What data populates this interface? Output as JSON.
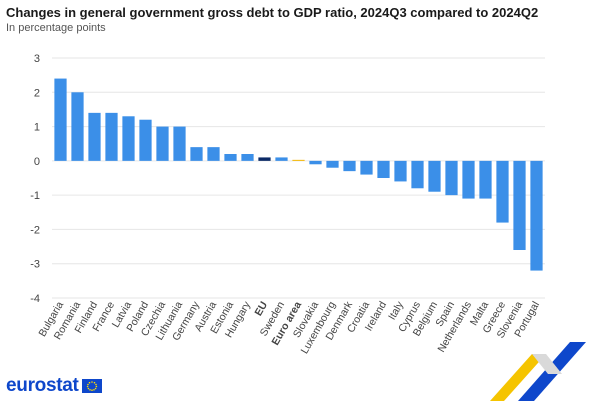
{
  "header": {
    "title": "Changes in general government gross debt to GDP ratio, 2024Q3 compared to 2024Q2",
    "subtitle": "In percentage points"
  },
  "brand": {
    "logo_text": "eurostat",
    "flag_icon": "eu-flag-icon",
    "logo_color": "#0e47cb"
  },
  "colors": {
    "bar": "#3b8fe8",
    "eu_bar": "#0b2a66",
    "euro_area_bar": "#f5b700",
    "grid": "#e6e6e6",
    "axis_text": "#444444"
  },
  "chart_data": {
    "type": "bar",
    "title": "Changes in general government gross debt to GDP ratio, 2024Q3 compared to 2024Q2",
    "subtitle": "In percentage points",
    "xlabel": "",
    "ylabel": "",
    "ylim": [
      -4,
      3
    ],
    "yticks": [
      "3",
      "2",
      "1",
      "0",
      "-1",
      "-2",
      "-3",
      "-4"
    ],
    "grid": true,
    "categories": [
      "Bulgaria",
      "Romania",
      "Finland",
      "France",
      "Latvia",
      "Poland",
      "Czechia",
      "Lithuania",
      "Germany",
      "Austria",
      "Estonia",
      "Hungary",
      "EU",
      "Sweden",
      "Euro area",
      "Slovakia",
      "Luxembourg",
      "Denmark",
      "Croatia",
      "Ireland",
      "Italy",
      "Cyprus",
      "Belgium",
      "Spain",
      "Netherlands",
      "Malta",
      "Greece",
      "Slovenia",
      "Portugal"
    ],
    "values": [
      2.4,
      2.0,
      1.4,
      1.4,
      1.3,
      1.2,
      1.0,
      1.0,
      0.4,
      0.4,
      0.2,
      0.2,
      0.1,
      0.1,
      0.0,
      -0.1,
      -0.2,
      -0.3,
      -0.4,
      -0.5,
      -0.6,
      -0.8,
      -0.9,
      -1.0,
      -1.1,
      -1.1,
      -1.8,
      -2.6,
      -3.2
    ],
    "bold_categories": [
      "EU",
      "Euro area"
    ]
  }
}
